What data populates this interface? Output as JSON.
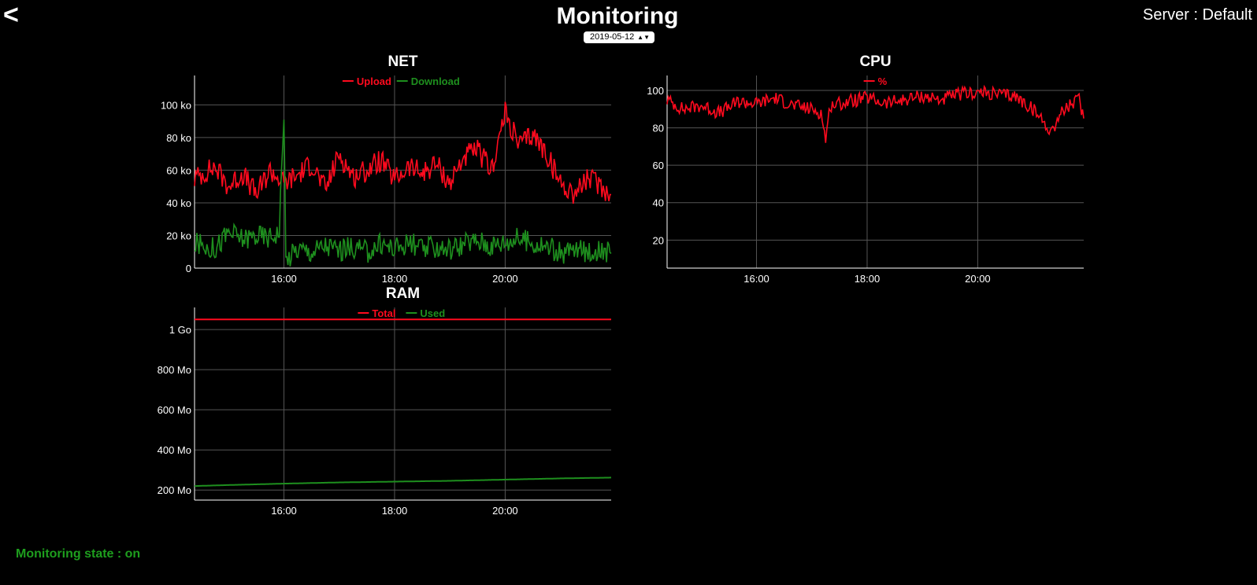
{
  "header": {
    "back_label": "<",
    "title": "Monitoring",
    "server": "Server : Default",
    "date": "2019-05-12"
  },
  "footer": {
    "state": "Monitoring state : on",
    "state_color": "#1e9e1e"
  },
  "colors": {
    "red": "#ff0a1e",
    "green": "#1e8f1e",
    "grid": "#555555",
    "axis": "#ffffff"
  },
  "chart_data": [
    {
      "id": "net",
      "type": "line",
      "title": "NET",
      "x_ticks": [
        "16:00",
        "18:00",
        "20:00"
      ],
      "x_range": [
        "14:23",
        "21:55"
      ],
      "ylim": [
        0,
        118
      ],
      "y_ticks": [
        0,
        20,
        40,
        60,
        80,
        100
      ],
      "y_tick_labels": [
        "0",
        "20 ko",
        "40 ko",
        "60 ko",
        "80 ko",
        "100 ko"
      ],
      "series": [
        {
          "name": "Upload",
          "color": "#ff0a1e",
          "x": [
            "14:23",
            "14:45",
            "15:00",
            "15:15",
            "15:30",
            "15:45",
            "16:00",
            "16:15",
            "16:30",
            "16:45",
            "17:00",
            "17:15",
            "17:30",
            "17:45",
            "18:00",
            "18:15",
            "18:30",
            "18:45",
            "19:00",
            "19:15",
            "19:30",
            "19:45",
            "20:00",
            "20:15",
            "20:30",
            "20:45",
            "21:00",
            "21:15",
            "21:30",
            "21:45",
            "21:55"
          ],
          "y": [
            55,
            62,
            50,
            58,
            45,
            60,
            52,
            57,
            64,
            48,
            70,
            56,
            60,
            66,
            54,
            62,
            58,
            64,
            52,
            68,
            72,
            60,
            95,
            75,
            82,
            70,
            52,
            46,
            55,
            50,
            45
          ]
        },
        {
          "name": "Download",
          "color": "#1e8f1e",
          "x": [
            "14:23",
            "14:45",
            "15:00",
            "15:15",
            "15:30",
            "15:45",
            "15:55",
            "16:00",
            "16:02",
            "16:15",
            "16:30",
            "16:45",
            "17:00",
            "17:15",
            "17:30",
            "17:45",
            "18:00",
            "18:15",
            "18:30",
            "18:45",
            "19:00",
            "19:15",
            "19:30",
            "19:45",
            "20:00",
            "20:15",
            "20:30",
            "20:45",
            "21:00",
            "21:15",
            "21:30",
            "21:45",
            "21:55"
          ],
          "y": [
            15,
            12,
            22,
            18,
            20,
            19,
            23,
            98,
            5,
            12,
            10,
            14,
            11,
            13,
            10,
            15,
            12,
            16,
            11,
            13,
            12,
            15,
            17,
            14,
            16,
            18,
            15,
            13,
            9,
            11,
            10,
            12,
            9
          ]
        }
      ]
    },
    {
      "id": "cpu",
      "type": "line",
      "title": "CPU",
      "x_ticks": [
        "16:00",
        "18:00",
        "20:00"
      ],
      "x_range": [
        "14:23",
        "21:55"
      ],
      "ylim": [
        5,
        108
      ],
      "y_ticks": [
        20,
        40,
        60,
        80,
        100
      ],
      "y_tick_labels": [
        "20",
        "40",
        "60",
        "80",
        "100"
      ],
      "series": [
        {
          "name": "%",
          "color": "#ff0a1e",
          "x": [
            "14:23",
            "14:40",
            "15:00",
            "15:20",
            "15:40",
            "16:00",
            "16:20",
            "16:40",
            "17:00",
            "17:10",
            "17:15",
            "17:20",
            "17:40",
            "18:00",
            "18:20",
            "18:40",
            "19:00",
            "19:20",
            "19:40",
            "20:00",
            "20:20",
            "20:40",
            "21:00",
            "21:10",
            "21:20",
            "21:30",
            "21:40",
            "21:50",
            "21:55"
          ],
          "y": [
            95,
            90,
            92,
            88,
            94,
            93,
            96,
            92,
            90,
            88,
            74,
            92,
            94,
            96,
            93,
            95,
            97,
            95,
            98,
            99,
            98,
            97,
            90,
            84,
            78,
            88,
            92,
            95,
            85
          ]
        }
      ]
    },
    {
      "id": "ram",
      "type": "line",
      "title": "RAM",
      "x_ticks": [
        "16:00",
        "18:00",
        "20:00"
      ],
      "x_range": [
        "14:23",
        "21:55"
      ],
      "ylim": [
        150,
        1110
      ],
      "y_ticks": [
        200,
        400,
        600,
        800,
        1000
      ],
      "y_tick_labels": [
        "200 Mo",
        "400 Mo",
        "600 Mo",
        "800 Mo",
        "1 Go"
      ],
      "series": [
        {
          "name": "Total",
          "color": "#ff0a1e",
          "x": [
            "14:23",
            "21:55"
          ],
          "y": [
            1050,
            1050
          ]
        },
        {
          "name": "Used",
          "color": "#1e8f1e",
          "x": [
            "14:23",
            "15:00",
            "16:00",
            "17:00",
            "18:00",
            "19:00",
            "20:00",
            "21:00",
            "21:55"
          ],
          "y": [
            220,
            225,
            232,
            238,
            242,
            246,
            252,
            258,
            262
          ]
        }
      ]
    }
  ]
}
